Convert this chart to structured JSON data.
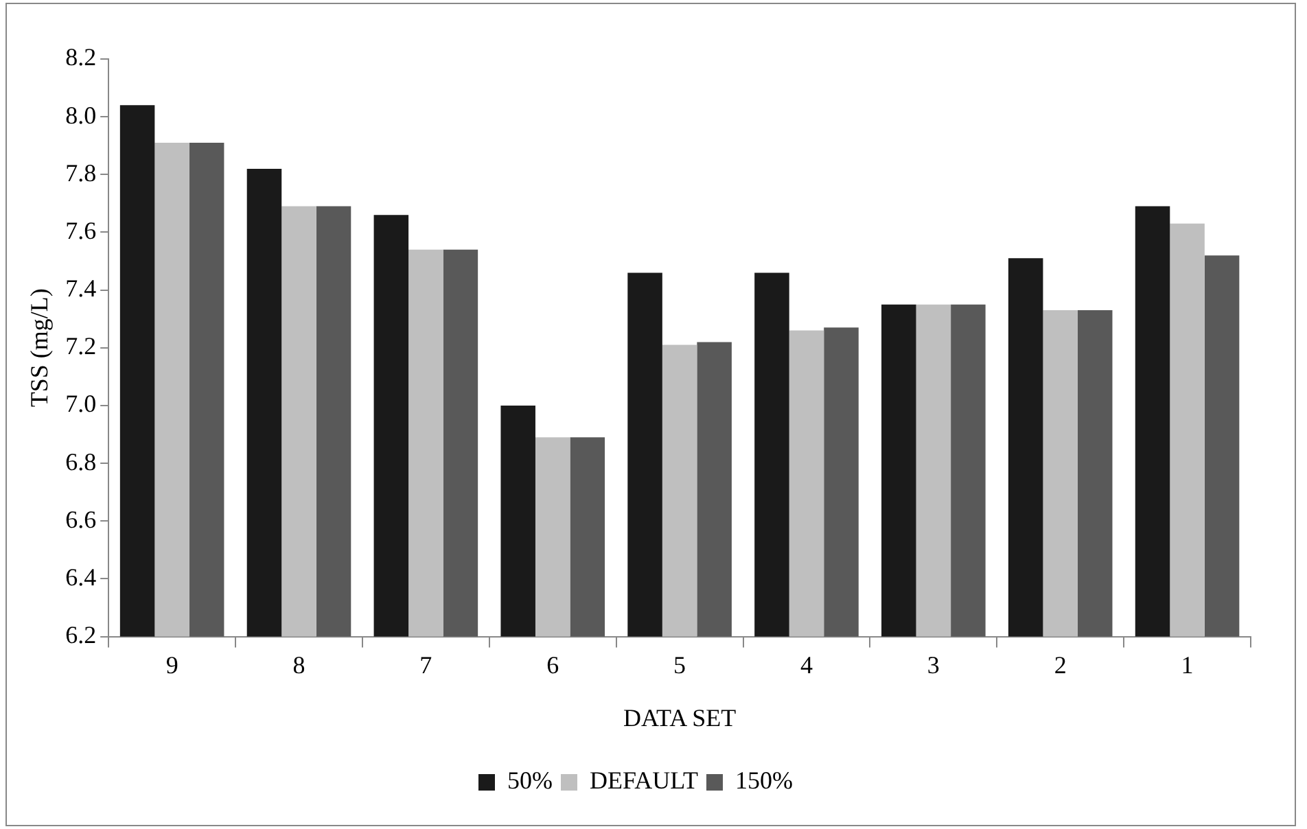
{
  "chart_data": {
    "type": "bar",
    "xlabel": "DATA SET",
    "ylabel": "TSS (mg/L)",
    "categories": [
      "9",
      "8",
      "7",
      "6",
      "5",
      "4",
      "3",
      "2",
      "1"
    ],
    "series": [
      {
        "name": "50%",
        "color": "#1a1a1a",
        "values": [
          8.04,
          7.82,
          7.66,
          7.0,
          7.46,
          7.46,
          7.35,
          7.51,
          7.69
        ]
      },
      {
        "name": "DEFAULT",
        "color": "#bfbfbf",
        "values": [
          7.91,
          7.69,
          7.54,
          6.89,
          7.21,
          7.26,
          7.35,
          7.33,
          7.63
        ]
      },
      {
        "name": "150%",
        "color": "#595959",
        "values": [
          7.91,
          7.69,
          7.54,
          6.89,
          7.22,
          7.27,
          7.35,
          7.33,
          7.52
        ]
      }
    ],
    "ylim": [
      6.2,
      8.2
    ],
    "yticks": [
      {
        "value": 6.2,
        "label": "6.2"
      },
      {
        "value": 6.4,
        "label": "6.4"
      },
      {
        "value": 6.6,
        "label": "6.6"
      },
      {
        "value": 6.8,
        "label": "6.8"
      },
      {
        "value": 7.0,
        "label": "7.0"
      },
      {
        "value": 7.2,
        "label": "7.2"
      },
      {
        "value": 7.4,
        "label": "7.4"
      },
      {
        "value": 7.6,
        "label": "7.6"
      },
      {
        "value": 7.8,
        "label": "7.8"
      },
      {
        "value": 8.0,
        "label": "8.0"
      },
      {
        "value": 8.2,
        "label": "8.2"
      }
    ],
    "grid": false,
    "legend": "bottom"
  }
}
